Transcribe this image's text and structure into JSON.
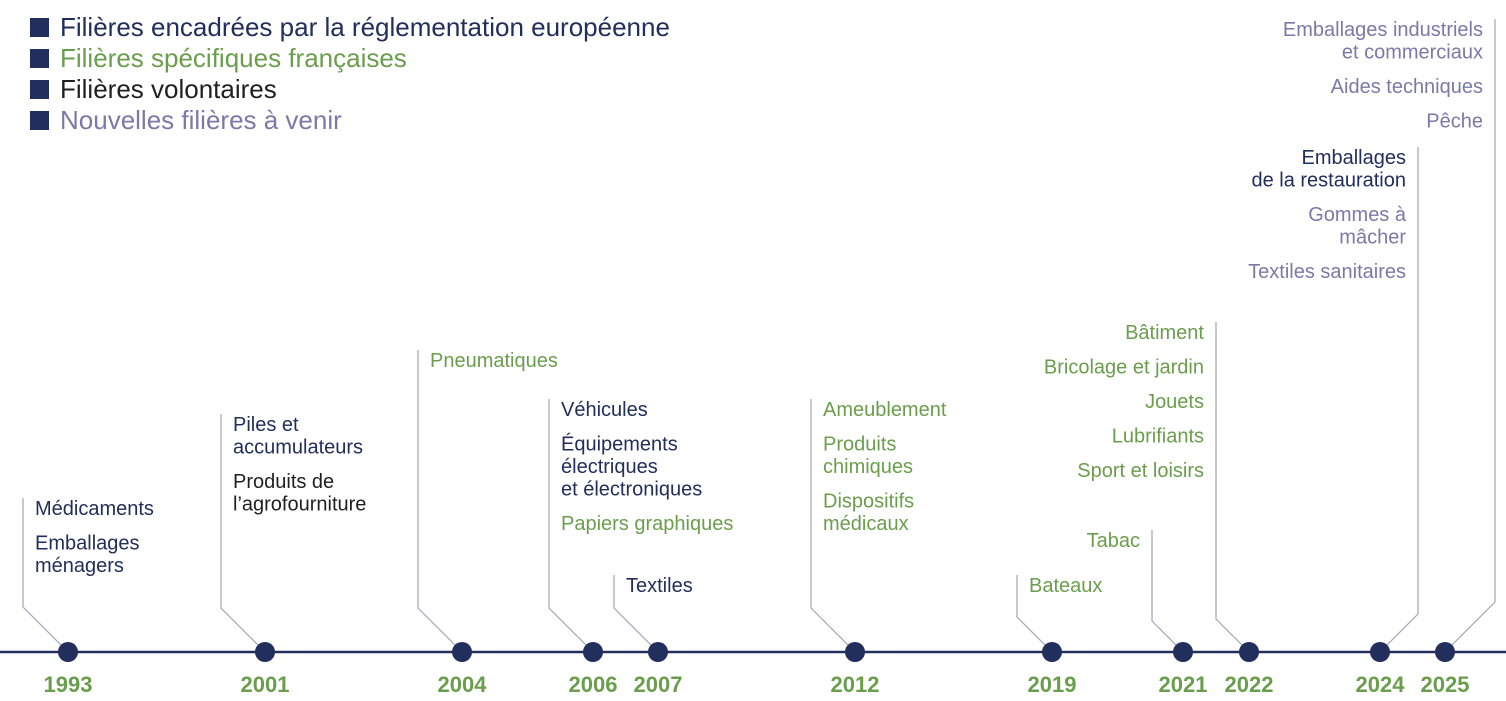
{
  "colors": {
    "european": "#222e5c",
    "french": "#6a9e4c",
    "voluntary": "#1f1f1f",
    "upcoming": "#7b79a8",
    "axis": "#222e5c",
    "connector": "#a4a4b9",
    "legend_marker": "#222e5c",
    "year_label": "#6a9e4c"
  },
  "legend": [
    {
      "label": "Filières encadrées par la réglementation européenne",
      "category": "european"
    },
    {
      "label": "Filières spécifiques françaises",
      "category": "french"
    },
    {
      "label": "Filières volontaires",
      "category": "voluntary"
    },
    {
      "label": "Nouvelles filières à venir",
      "category": "upcoming"
    }
  ],
  "timeline": [
    {
      "year": "1993",
      "items": [
        {
          "lines": [
            "Médicaments"
          ],
          "category": "european"
        },
        {
          "lines": [
            "Emballages",
            "ménagers"
          ],
          "category": "european"
        }
      ]
    },
    {
      "year": "2001",
      "items": [
        {
          "lines": [
            "Piles et",
            "accumulateurs"
          ],
          "category": "european"
        },
        {
          "lines": [
            "Produits de",
            "l’agrofourniture"
          ],
          "category": "voluntary"
        }
      ]
    },
    {
      "year": "2004",
      "items": [
        {
          "lines": [
            "Pneumatiques"
          ],
          "category": "french"
        }
      ]
    },
    {
      "year": "2006",
      "items": [
        {
          "lines": [
            "Véhicules"
          ],
          "category": "european"
        },
        {
          "lines": [
            "Équipements",
            "électriques",
            "et électroniques"
          ],
          "category": "european"
        },
        {
          "lines": [
            "Papiers graphiques"
          ],
          "category": "french"
        }
      ]
    },
    {
      "year": "2007",
      "items": [
        {
          "lines": [
            "Textiles"
          ],
          "category": "european"
        }
      ]
    },
    {
      "year": "2012",
      "items": [
        {
          "lines": [
            "Ameublement"
          ],
          "category": "french"
        },
        {
          "lines": [
            "Produits",
            "chimiques"
          ],
          "category": "french"
        },
        {
          "lines": [
            "Dispositifs",
            "médicaux"
          ],
          "category": "french"
        }
      ]
    },
    {
      "year": "2019",
      "items": [
        {
          "lines": [
            "Bateaux"
          ],
          "category": "french"
        }
      ]
    },
    {
      "year": "2021",
      "items": [
        {
          "lines": [
            "Tabac"
          ],
          "category": "french"
        }
      ]
    },
    {
      "year": "2022",
      "items": [
        {
          "lines": [
            "Bâtiment"
          ],
          "category": "french"
        },
        {
          "lines": [
            "Bricolage et jardin"
          ],
          "category": "french"
        },
        {
          "lines": [
            "Jouets"
          ],
          "category": "french"
        },
        {
          "lines": [
            "Lubrifiants"
          ],
          "category": "french"
        },
        {
          "lines": [
            "Sport et loisirs"
          ],
          "category": "french"
        }
      ]
    },
    {
      "year": "2024",
      "items": [
        {
          "lines": [
            "Emballages",
            "de la restauration"
          ],
          "category": "european"
        },
        {
          "lines": [
            "Gommes à",
            "mâcher"
          ],
          "category": "upcoming"
        },
        {
          "lines": [
            "Textiles sanitaires"
          ],
          "category": "upcoming"
        }
      ]
    },
    {
      "year": "2025",
      "items": [
        {
          "lines": [
            "Emballages industriels",
            "et commerciaux"
          ],
          "category": "upcoming"
        },
        {
          "lines": [
            "Aides techniques"
          ],
          "category": "upcoming"
        },
        {
          "lines": [
            "Pêche"
          ],
          "category": "upcoming"
        }
      ]
    }
  ]
}
